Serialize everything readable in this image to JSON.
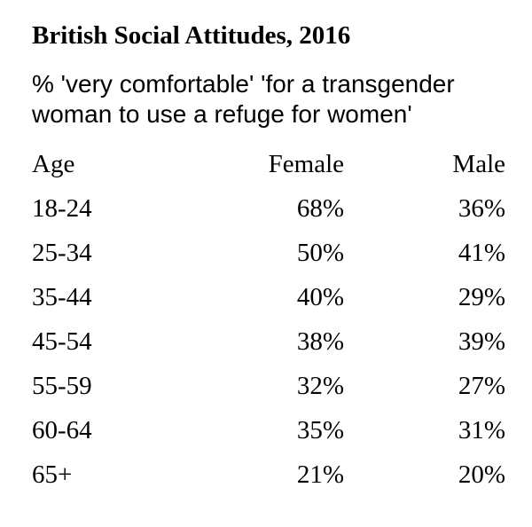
{
  "chart_data": {
    "type": "table",
    "title": "British Social Attitudes, 2016",
    "subtitle_lines": [
      "% 'very comfortable' 'for a transgender",
      "woman to use a refuge for women'"
    ],
    "columns": [
      "Age",
      "Female",
      "Male"
    ],
    "categories": [
      "18-24",
      "25-34",
      "35-44",
      "45-54",
      "55-59",
      "60-64",
      "65+"
    ],
    "series": [
      {
        "name": "Female",
        "values": [
          68,
          50,
          40,
          38,
          32,
          35,
          21
        ]
      },
      {
        "name": "Male",
        "values": [
          36,
          41,
          29,
          39,
          27,
          31,
          20
        ]
      }
    ],
    "value_suffix": "%"
  }
}
